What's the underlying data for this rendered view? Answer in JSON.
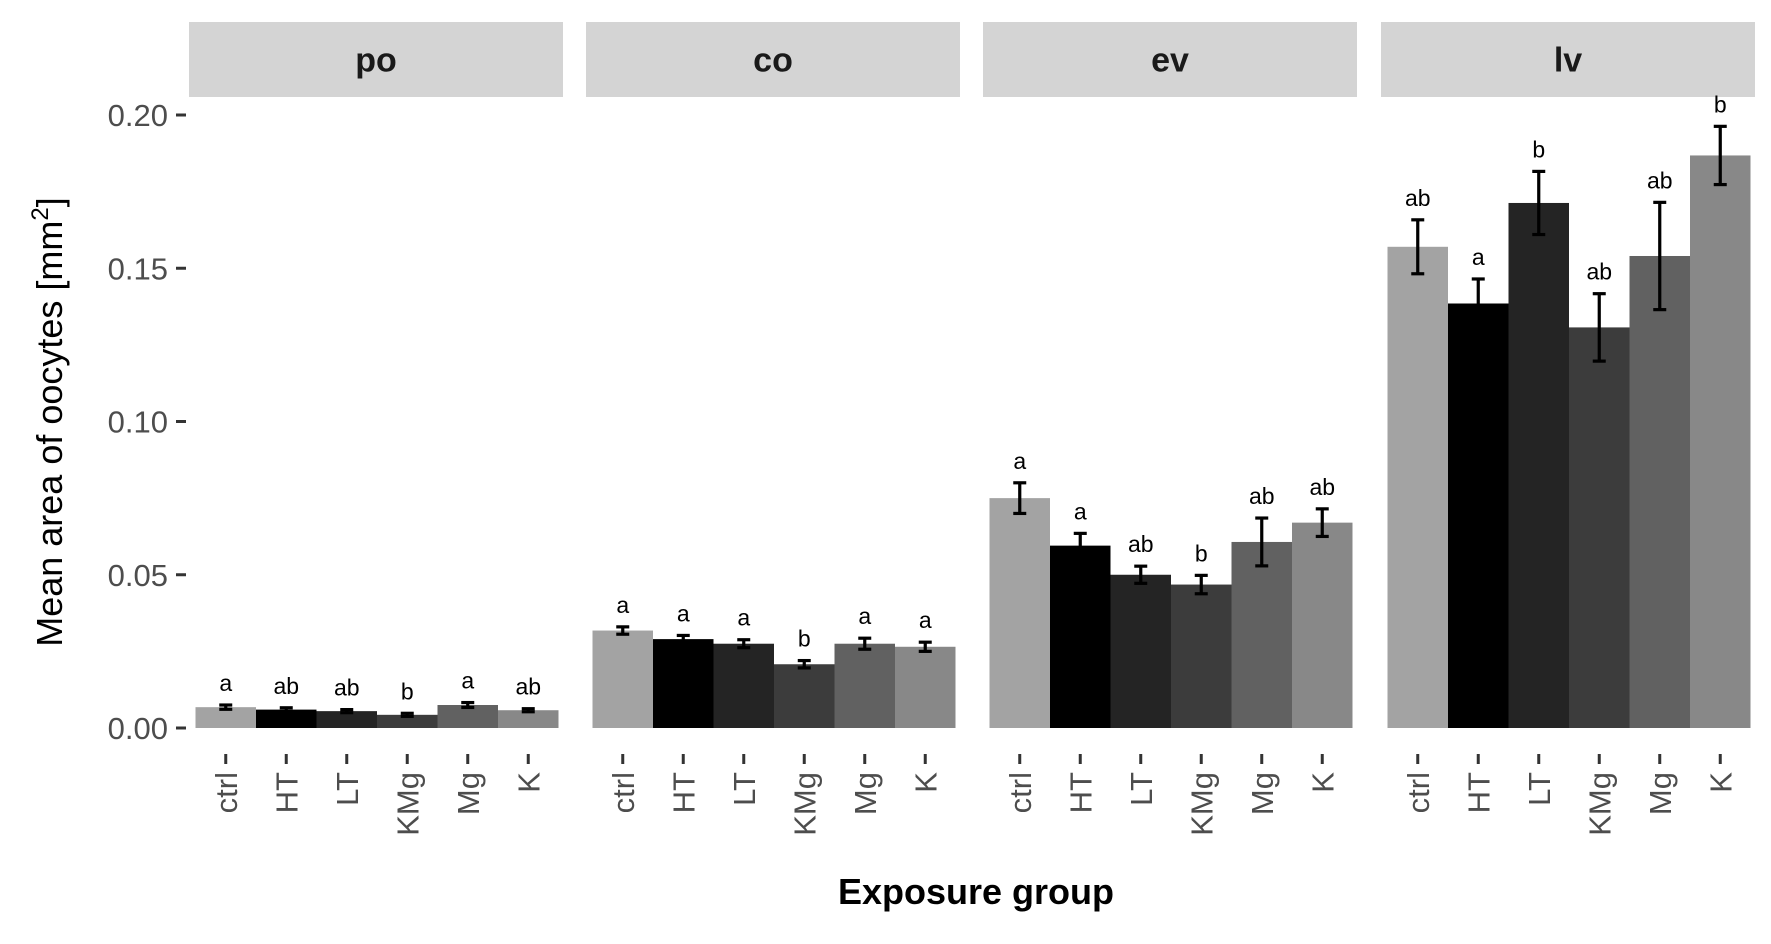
{
  "chart_data": {
    "type": "bar",
    "xlabel": "Exposure group",
    "ylabel": "Mean area of oocytes [mm",
    "ylabel_sup": "2",
    "ylabel_end": "]",
    "ylim": [
      0,
      0.2
    ],
    "yticks": [
      "0.00",
      "0.05",
      "0.10",
      "0.15",
      "0.20"
    ],
    "ytick_values": [
      0,
      0.05,
      0.1,
      0.15,
      0.2
    ],
    "categories": [
      "ctrl",
      "HT",
      "LT",
      "KMg",
      "Mg",
      "K"
    ],
    "colors": [
      "#a3a3a3",
      "#000000",
      "#242424",
      "#3c3c3c",
      "#616161",
      "#888888"
    ],
    "legend": "none",
    "grid": false,
    "panels": [
      {
        "name": "po",
        "values": [
          0.0068,
          0.006,
          0.0055,
          0.0043,
          0.0075,
          0.0058
        ],
        "error": [
          0.0007,
          0.0006,
          0.0005,
          0.0005,
          0.0008,
          0.0005
        ],
        "labels": [
          "a",
          "ab",
          "ab",
          "b",
          "a",
          "ab"
        ]
      },
      {
        "name": "co",
        "values": [
          0.0318,
          0.029,
          0.0275,
          0.0208,
          0.0275,
          0.0265
        ],
        "error": [
          0.0012,
          0.0012,
          0.0013,
          0.0012,
          0.0018,
          0.0015
        ],
        "labels": [
          "a",
          "a",
          "a",
          "b",
          "a",
          "a"
        ]
      },
      {
        "name": "ev",
        "values": [
          0.075,
          0.0595,
          0.05,
          0.0468,
          0.0607,
          0.067
        ],
        "error": [
          0.005,
          0.004,
          0.0028,
          0.003,
          0.0078,
          0.0045
        ],
        "labels": [
          "a",
          "a",
          "ab",
          "b",
          "ab",
          "ab"
        ]
      },
      {
        "name": "lv",
        "values": [
          0.157,
          0.1385,
          0.1713,
          0.1307,
          0.154,
          0.1868
        ],
        "error": [
          0.0088,
          0.008,
          0.0103,
          0.011,
          0.0175,
          0.0095
        ],
        "labels": [
          "ab",
          "a",
          "b",
          "ab",
          "ab",
          "b"
        ]
      }
    ]
  }
}
